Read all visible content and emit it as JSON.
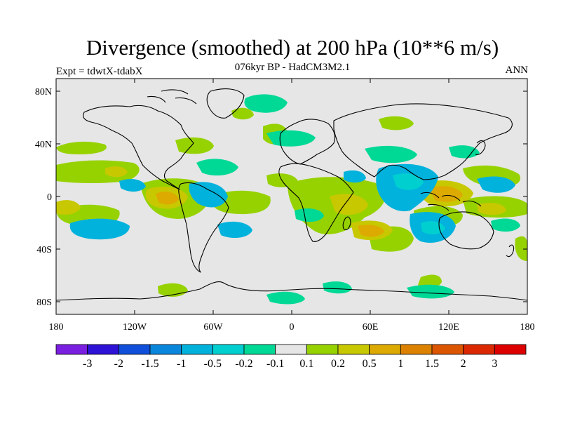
{
  "title": "Divergence (smoothed) at 200 hPa (10**6 m/s)",
  "subtitle": "076kyr BP - HadCM3M2.1",
  "experiment": "Expt = tdwtX-tdabX",
  "season": "ANN",
  "lat_labels": [
    "80N",
    "40N",
    "0",
    "40S",
    "80S"
  ],
  "lon_labels": [
    "180",
    "120W",
    "60W",
    "0",
    "60E",
    "120E",
    "180"
  ],
  "colorbar": {
    "labels": [
      "-3",
      "-2",
      "-1.5",
      "-1",
      "-0.5",
      "-0.2",
      "-0.1",
      "0.1",
      "0.2",
      "0.5",
      "1",
      "1.5",
      "2",
      "3"
    ],
    "colors": [
      "#7a1ee0",
      "#2e12d6",
      "#0f4fd9",
      "#0a86dc",
      "#00b2dc",
      "#00cfd0",
      "#00d896",
      "#e6e6e6",
      "#96d200",
      "#c8c800",
      "#dcaa00",
      "#dc8200",
      "#dc5500",
      "#dc2800",
      "#dc0000"
    ]
  },
  "colors": {
    "neutral": "#e6e6e6",
    "coast": "#000000"
  }
}
